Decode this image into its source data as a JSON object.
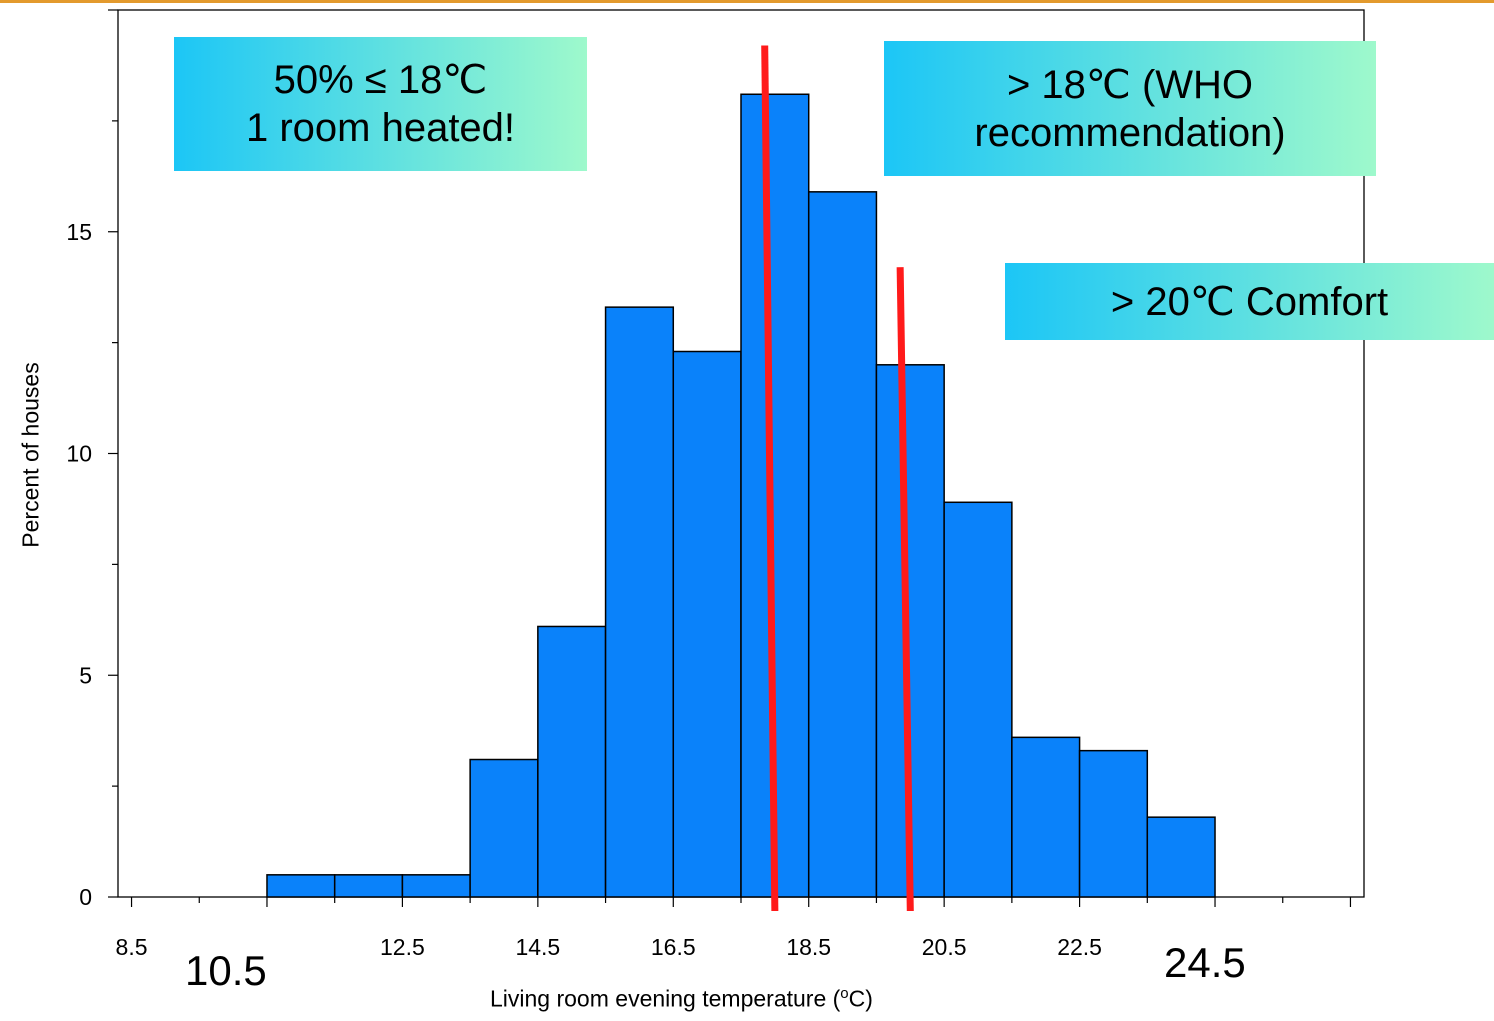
{
  "chart_data": {
    "type": "bar",
    "bin_edges": [
      8.5,
      9.5,
      10.5,
      11.5,
      12.5,
      13.5,
      14.5,
      15.5,
      16.5,
      17.5,
      18.5,
      19.5,
      20.5,
      21.5,
      22.5,
      23.5,
      24.5,
      25.5,
      26.5
    ],
    "values": [
      0,
      0,
      0.5,
      0.5,
      0.5,
      3.1,
      6.1,
      13.3,
      12.3,
      18.1,
      15.9,
      12.0,
      8.9,
      3.6,
      3.3,
      1.8,
      0,
      0
    ],
    "bar_color": "#0a82fa",
    "xlabel_main": "Living room evening temperature (",
    "xlabel_sup": "o",
    "xlabel_end": "C)",
    "ylabel": "Percent of houses",
    "xlim": [
      8.3,
      26.7
    ],
    "ylim": [
      0,
      20
    ],
    "x_ticks": [
      8.5,
      12.5,
      14.5,
      16.5,
      18.5,
      20.5,
      22.5
    ],
    "x_tick_labels": [
      "8.5",
      "12.5",
      "14.5",
      "16.5",
      "18.5",
      "20.5",
      "22.5"
    ],
    "y_ticks": [
      0,
      5,
      10,
      15
    ],
    "y_tick_labels": [
      "0",
      "5",
      "10",
      "15"
    ],
    "big_tick_labels": [
      "10.5",
      "24.5"
    ],
    "threshold_lines": [
      {
        "x_bottom": 18,
        "x_top": 17.85,
        "y_top": 19.2,
        "color": "#ff1a1a"
      },
      {
        "x_bottom": 20,
        "x_top": 19.85,
        "y_top": 14.2,
        "color": "#ff1a1a"
      }
    ],
    "annotations": [
      {
        "lines": [
          "50% ≤ 18℃",
          "1 room heated!"
        ]
      },
      {
        "lines": [
          "> 18℃ (WHO",
          "recommendation)"
        ]
      },
      {
        "lines": [
          "> 20℃ Comfort"
        ]
      }
    ],
    "grid": false,
    "legend": "none"
  }
}
